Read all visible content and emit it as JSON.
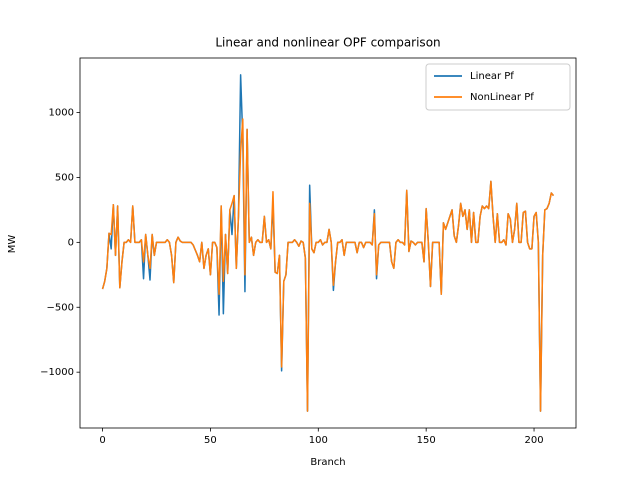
{
  "chart_data": {
    "type": "line",
    "title": "Linear and nonlinear OPF comparison",
    "xlabel": "Branch",
    "ylabel": "MW",
    "x": [
      0,
      1,
      2,
      3,
      4,
      5,
      6,
      7,
      8,
      9,
      10,
      11,
      12,
      13,
      14,
      15,
      16,
      17,
      18,
      19,
      20,
      21,
      22,
      23,
      24,
      25,
      26,
      27,
      28,
      29,
      30,
      31,
      32,
      33,
      34,
      35,
      36,
      37,
      38,
      39,
      40,
      41,
      42,
      43,
      44,
      45,
      46,
      47,
      48,
      49,
      50,
      51,
      52,
      53,
      54,
      55,
      56,
      57,
      58,
      59,
      60,
      61,
      62,
      63,
      64,
      65,
      66,
      67,
      68,
      69,
      70,
      71,
      72,
      73,
      74,
      75,
      76,
      77,
      78,
      79,
      80,
      81,
      82,
      83,
      84,
      85,
      86,
      87,
      88,
      89,
      90,
      91,
      92,
      93,
      94,
      95,
      96,
      97,
      98,
      99,
      100,
      101,
      102,
      103,
      104,
      105,
      106,
      107,
      108,
      109,
      110,
      111,
      112,
      113,
      114,
      115,
      116,
      117,
      118,
      119,
      120,
      121,
      122,
      123,
      124,
      125,
      126,
      127,
      128,
      129,
      130,
      131,
      132,
      133,
      134,
      135,
      136,
      137,
      138,
      139,
      140,
      141,
      142,
      143,
      144,
      145,
      146,
      147,
      148,
      149,
      150,
      151,
      152,
      153,
      154,
      155,
      156,
      157,
      158,
      159,
      160,
      161,
      162,
      163,
      164,
      165,
      166,
      167,
      168,
      169,
      170,
      171,
      172,
      173,
      174,
      175,
      176,
      177,
      178,
      179,
      180,
      181,
      182,
      183,
      184,
      185,
      186,
      187,
      188,
      189,
      190,
      191,
      192,
      193,
      194,
      195,
      196,
      197,
      198,
      199,
      200,
      201,
      202,
      203,
      204,
      205,
      206,
      207,
      208,
      209
    ],
    "series": [
      {
        "name": "Linear Pf",
        "color": "#1f77b4",
        "values": [
          -360,
          -300,
          -200,
          70,
          -50,
          290,
          -100,
          280,
          -350,
          -150,
          0,
          0,
          20,
          0,
          280,
          0,
          0,
          0,
          20,
          -280,
          60,
          -100,
          -290,
          60,
          -100,
          0,
          0,
          0,
          0,
          0,
          20,
          0,
          -100,
          -310,
          0,
          40,
          10,
          0,
          0,
          0,
          0,
          0,
          -20,
          -60,
          -100,
          -150,
          0,
          -200,
          -100,
          -50,
          -250,
          0,
          0,
          -40,
          -560,
          280,
          -550,
          60,
          -240,
          250,
          60,
          360,
          -200,
          200,
          1290,
          800,
          -380,
          870,
          0,
          40,
          -100,
          0,
          20,
          0,
          0,
          200,
          0,
          20,
          -50,
          300,
          -230,
          -240,
          -100,
          -990,
          -300,
          -250,
          0,
          0,
          0,
          20,
          0,
          -30,
          10,
          0,
          -120,
          -1300,
          440,
          -50,
          -80,
          0,
          0,
          20,
          -20,
          0,
          0,
          100,
          0,
          -370,
          -150,
          0,
          0,
          20,
          -100,
          0,
          0,
          0,
          0,
          0,
          -80,
          0,
          0,
          -40,
          0,
          0,
          0,
          -20,
          250,
          -280,
          -20,
          0,
          0,
          0,
          0,
          0,
          -150,
          -200,
          0,
          20,
          0,
          0,
          -20,
          400,
          -70,
          10,
          0,
          -20,
          0,
          0,
          0,
          -150,
          260,
          0,
          -340,
          0,
          0,
          0,
          0,
          -400,
          150,
          100,
          150,
          200,
          250,
          50,
          0,
          130,
          300,
          200,
          250,
          100,
          250,
          0,
          230,
          0,
          0,
          200,
          280,
          260,
          280,
          260,
          470,
          200,
          0,
          220,
          0,
          0,
          20,
          -20,
          220,
          180,
          0,
          100,
          300,
          0,
          0,
          230,
          240,
          0,
          -50,
          -50,
          200,
          230,
          0,
          -1300,
          -100,
          250,
          260,
          300,
          380,
          360
        ]
      },
      {
        "name": "NonLinear Pf",
        "color": "#ff7f0e",
        "values": [
          -360,
          -300,
          -200,
          70,
          60,
          290,
          -100,
          280,
          -350,
          -150,
          0,
          0,
          20,
          0,
          280,
          0,
          0,
          0,
          20,
          -150,
          60,
          -100,
          -200,
          60,
          -100,
          0,
          0,
          0,
          0,
          0,
          20,
          0,
          -100,
          -310,
          0,
          40,
          10,
          0,
          0,
          0,
          0,
          0,
          -20,
          -60,
          -100,
          -150,
          0,
          -200,
          -100,
          -50,
          -250,
          0,
          0,
          -40,
          -400,
          280,
          -300,
          60,
          -240,
          250,
          300,
          360,
          -200,
          200,
          700,
          950,
          -250,
          870,
          0,
          40,
          -100,
          0,
          20,
          0,
          0,
          200,
          0,
          20,
          -50,
          390,
          -230,
          -240,
          -100,
          -960,
          -300,
          -250,
          0,
          0,
          0,
          20,
          0,
          -30,
          10,
          0,
          -120,
          -1300,
          300,
          -50,
          -80,
          0,
          0,
          20,
          -20,
          0,
          0,
          100,
          0,
          -330,
          -150,
          0,
          0,
          20,
          -100,
          0,
          0,
          0,
          0,
          0,
          -80,
          0,
          0,
          -40,
          0,
          0,
          0,
          -20,
          220,
          -250,
          -20,
          0,
          0,
          0,
          0,
          0,
          -150,
          -200,
          0,
          20,
          0,
          0,
          -20,
          400,
          -70,
          10,
          0,
          -20,
          0,
          0,
          0,
          -150,
          260,
          0,
          -340,
          0,
          0,
          0,
          0,
          -400,
          150,
          100,
          150,
          200,
          250,
          50,
          0,
          130,
          300,
          200,
          250,
          100,
          250,
          0,
          230,
          0,
          0,
          200,
          280,
          260,
          280,
          260,
          470,
          200,
          0,
          220,
          0,
          0,
          20,
          -20,
          220,
          180,
          0,
          100,
          300,
          0,
          0,
          230,
          240,
          0,
          -50,
          -50,
          200,
          230,
          0,
          -1300,
          -100,
          250,
          260,
          300,
          380,
          360
        ]
      }
    ],
    "xlim": [
      -10.45,
      219.45
    ],
    "ylim": [
      -1430,
      1420
    ],
    "xticks": [
      0,
      50,
      100,
      150,
      200
    ],
    "yticks": [
      {
        "value": -1000,
        "label": "−1000"
      },
      {
        "value": -500,
        "label": "−500"
      },
      0,
      500,
      1000
    ],
    "legend": "upper right",
    "grid": false
  }
}
